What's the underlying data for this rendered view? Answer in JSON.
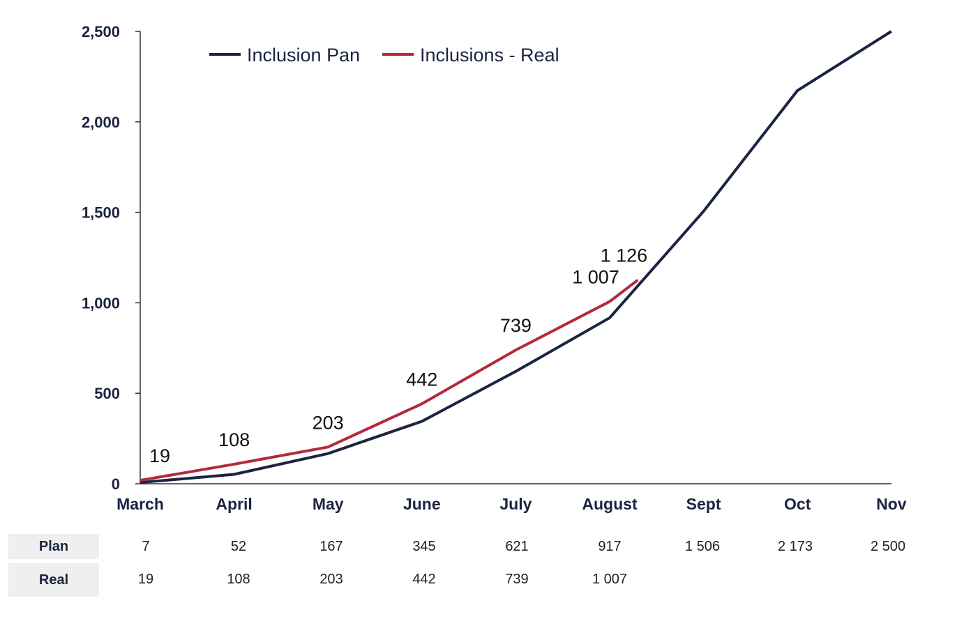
{
  "chart_data": {
    "type": "line",
    "categories": [
      "March",
      "April",
      "May",
      "June",
      "July",
      "August",
      "Sept",
      "Oct",
      "Nov"
    ],
    "ylim": [
      0,
      2500
    ],
    "yticks": [
      0,
      500,
      1000,
      1500,
      2000,
      2500
    ],
    "ytick_labels": [
      "0",
      "500",
      "1,000",
      "1,500",
      "2,000",
      "2,500"
    ],
    "grid": false,
    "legend_position": "top-left",
    "series": [
      {
        "name": "Inclusion Pan",
        "color": "#1b2440",
        "x": [
          0,
          1,
          2,
          3,
          4,
          5,
          6,
          7,
          8
        ],
        "values": [
          7,
          52,
          167,
          345,
          621,
          917,
          1506,
          2173,
          2500
        ]
      },
      {
        "name": "Inclusions - Real",
        "color": "#b22a3e",
        "x": [
          0,
          1,
          2,
          3,
          4,
          5,
          5.3
        ],
        "values": [
          19,
          108,
          203,
          442,
          739,
          1007,
          1126
        ],
        "labels": [
          "19",
          "108",
          "203",
          "442",
          "739",
          "1 007",
          "1 126"
        ]
      }
    ]
  },
  "table": {
    "rows": [
      {
        "label": "Plan",
        "values": [
          "7",
          "52",
          "167",
          "345",
          "621",
          "917",
          "1 506",
          "2 173",
          "2 500"
        ]
      },
      {
        "label": "Real",
        "values": [
          "19",
          "108",
          "203",
          "442",
          "739",
          "1 007",
          "",
          "",
          ""
        ]
      }
    ]
  }
}
